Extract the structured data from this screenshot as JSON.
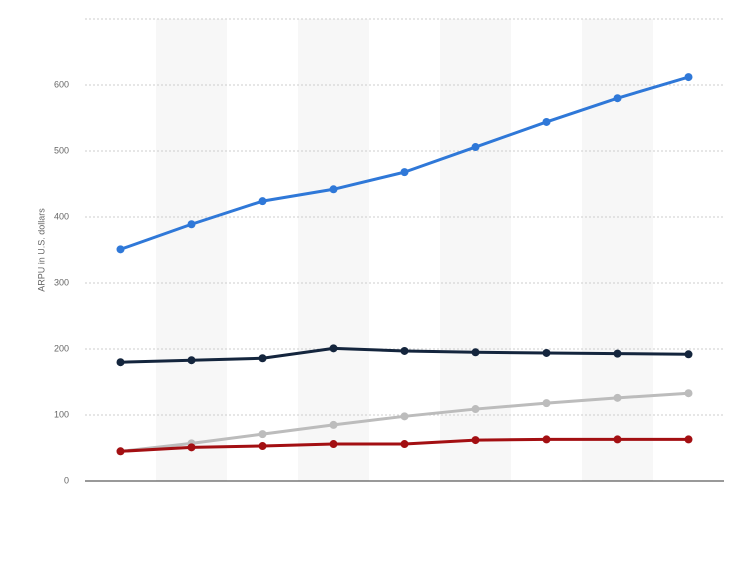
{
  "chart_data": {
    "type": "line",
    "y_axis_label": "ARPU in U.S. dollars",
    "categories": [
      null,
      null,
      null,
      null,
      null,
      null,
      null,
      null,
      null
    ],
    "series": [
      {
        "color": "#2f78d8",
        "values": [
          351,
          389,
          424,
          442,
          468,
          506,
          544,
          580,
          612
        ]
      },
      {
        "color": "#14253d",
        "values": [
          180,
          183,
          186,
          201,
          197,
          195,
          194,
          193,
          192
        ]
      },
      {
        "color": "#bcbcbc",
        "values": [
          45,
          57,
          71,
          85,
          98,
          109,
          118,
          126,
          133
        ]
      },
      {
        "color": "#a30f12",
        "values": [
          45,
          51,
          53,
          56,
          56,
          62,
          63,
          63,
          63
        ]
      }
    ],
    "ylim": [
      0,
      700
    ],
    "yticks": [
      0,
      100,
      200,
      300,
      400,
      500,
      600
    ],
    "grid": true
  }
}
